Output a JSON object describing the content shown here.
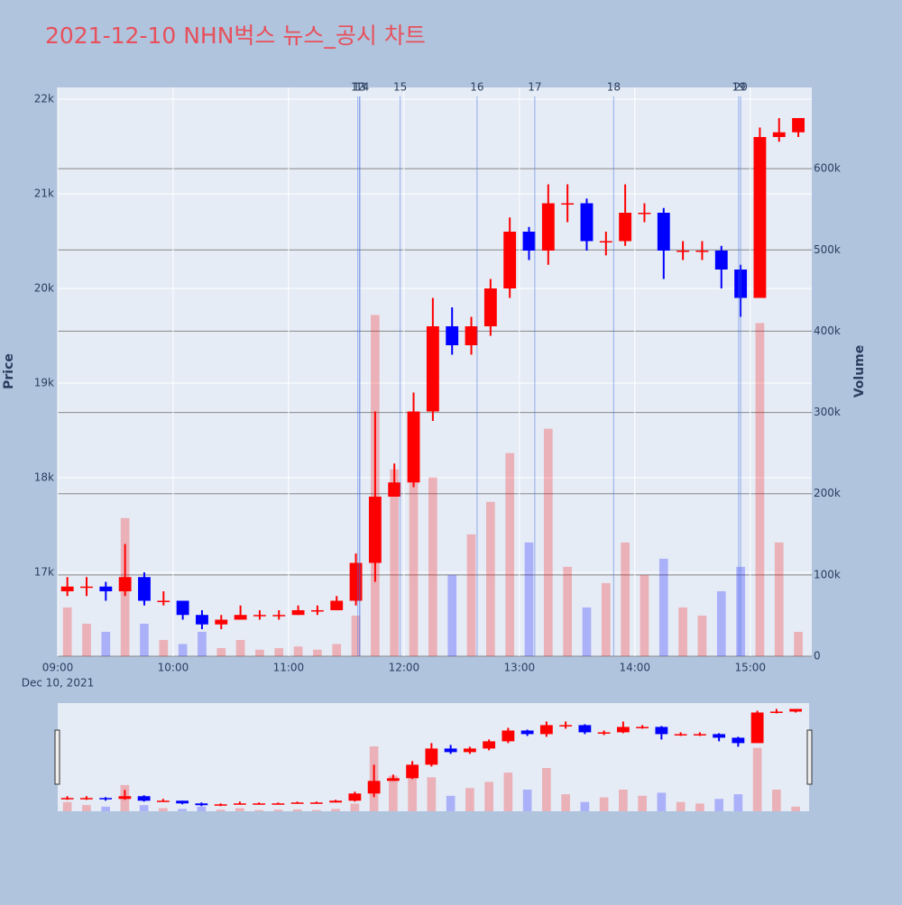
{
  "chart_data": {
    "type": "candlestick",
    "title": "2021-12-10 NHN벅스 뉴스_공시 차트",
    "y_title": "Price",
    "y2_title": "Volume",
    "x_date_label": "Dec 10, 2021",
    "x": [
      "09:00",
      "09:10",
      "09:20",
      "09:30",
      "09:40",
      "09:50",
      "10:00",
      "10:10",
      "10:20",
      "10:30",
      "10:40",
      "10:50",
      "11:00",
      "11:10",
      "11:20",
      "11:30",
      "11:40",
      "11:50",
      "12:00",
      "12:10",
      "12:20",
      "12:30",
      "12:40",
      "12:50",
      "13:00",
      "13:10",
      "13:20",
      "13:30",
      "13:40",
      "13:50",
      "14:00",
      "14:10",
      "14:20",
      "14:30",
      "14:40",
      "14:50",
      "15:00",
      "15:10",
      "15:20"
    ],
    "open": [
      16800,
      16850,
      16850,
      16800,
      16950,
      16700,
      16700,
      16550,
      16450,
      16500,
      16550,
      16550,
      16550,
      16600,
      16600,
      16700,
      17100,
      17800,
      17950,
      18700,
      19600,
      19400,
      19600,
      20000,
      20600,
      20400,
      20900,
      20900,
      20500,
      20500,
      20800,
      20800,
      20400,
      20400,
      20400,
      20200,
      19900,
      21600,
      21650
    ],
    "high": [
      16950,
      16950,
      16900,
      17300,
      17000,
      16800,
      16700,
      16600,
      16550,
      16650,
      16600,
      16600,
      16650,
      16650,
      16750,
      17200,
      18700,
      18150,
      18900,
      19900,
      19800,
      19700,
      20100,
      20750,
      20650,
      21100,
      21100,
      20950,
      20600,
      21100,
      20900,
      20850,
      20500,
      20500,
      20450,
      20250,
      21700,
      21800,
      21800
    ],
    "low": [
      16750,
      16750,
      16700,
      16750,
      16650,
      16650,
      16500,
      16400,
      16400,
      16500,
      16500,
      16500,
      16550,
      16550,
      16600,
      16650,
      16900,
      17800,
      17900,
      18600,
      19300,
      19300,
      19500,
      19900,
      20300,
      20250,
      20700,
      20400,
      20350,
      20450,
      20700,
      20100,
      20300,
      20300,
      20000,
      19700,
      19900,
      21550,
      21600
    ],
    "close": [
      16850,
      16850,
      16800,
      16950,
      16700,
      16700,
      16550,
      16450,
      16500,
      16550,
      16550,
      16550,
      16600,
      16600,
      16700,
      17100,
      17800,
      17950,
      18700,
      19600,
      19400,
      19600,
      20000,
      20600,
      20400,
      20900,
      20900,
      20500,
      20500,
      20800,
      20800,
      20400,
      20400,
      20400,
      20200,
      19900,
      21600,
      21650,
      21800
    ],
    "volume": [
      60000,
      40000,
      30000,
      170000,
      40000,
      20000,
      15000,
      30000,
      10000,
      20000,
      8000,
      10000,
      12000,
      8000,
      15000,
      50000,
      420000,
      230000,
      300000,
      220000,
      100000,
      150000,
      190000,
      250000,
      140000,
      280000,
      110000,
      60000,
      90000,
      140000,
      100000,
      120000,
      60000,
      50000,
      80000,
      110000,
      410000,
      140000,
      30000
    ],
    "increasing_color": "#ff0000",
    "decreasing_color": "#0000ff",
    "xlim": [
      "09:00",
      "15:32"
    ],
    "xticks": [
      "09:00",
      "10:00",
      "11:00",
      "12:00",
      "13:00",
      "14:00",
      "15:00"
    ],
    "ylim": [
      16114,
      22124
    ],
    "yticks": [
      {
        "value": 17000,
        "label": "17k"
      },
      {
        "value": 18000,
        "label": "18k"
      },
      {
        "value": 19000,
        "label": "19k"
      },
      {
        "value": 20000,
        "label": "20k"
      },
      {
        "value": 21000,
        "label": "21k"
      },
      {
        "value": 22000,
        "label": "22k"
      }
    ],
    "y2lim": [
      0,
      700000
    ],
    "y2ticks": [
      0,
      {
        "value": 100000,
        "label": "100k"
      },
      {
        "value": 200000,
        "label": "200k"
      },
      {
        "value": 300000,
        "label": "300k"
      },
      {
        "value": 400000,
        "label": "400k"
      },
      {
        "value": 500000,
        "label": "500k"
      },
      {
        "value": 600000,
        "label": "600k"
      }
    ],
    "annotations": [
      {
        "label": "12",
        "x": "11:36"
      },
      {
        "label": "13",
        "x": "11:37"
      },
      {
        "label": "14",
        "x": "11:37"
      },
      {
        "label": "15",
        "x": "11:58"
      },
      {
        "label": "16",
        "x": "12:38"
      },
      {
        "label": "17",
        "x": "13:08"
      },
      {
        "label": "18",
        "x": "13:49"
      },
      {
        "label": "19",
        "x": "14:54"
      },
      {
        "label": "20",
        "x": "14:55"
      }
    ],
    "grid": true
  }
}
